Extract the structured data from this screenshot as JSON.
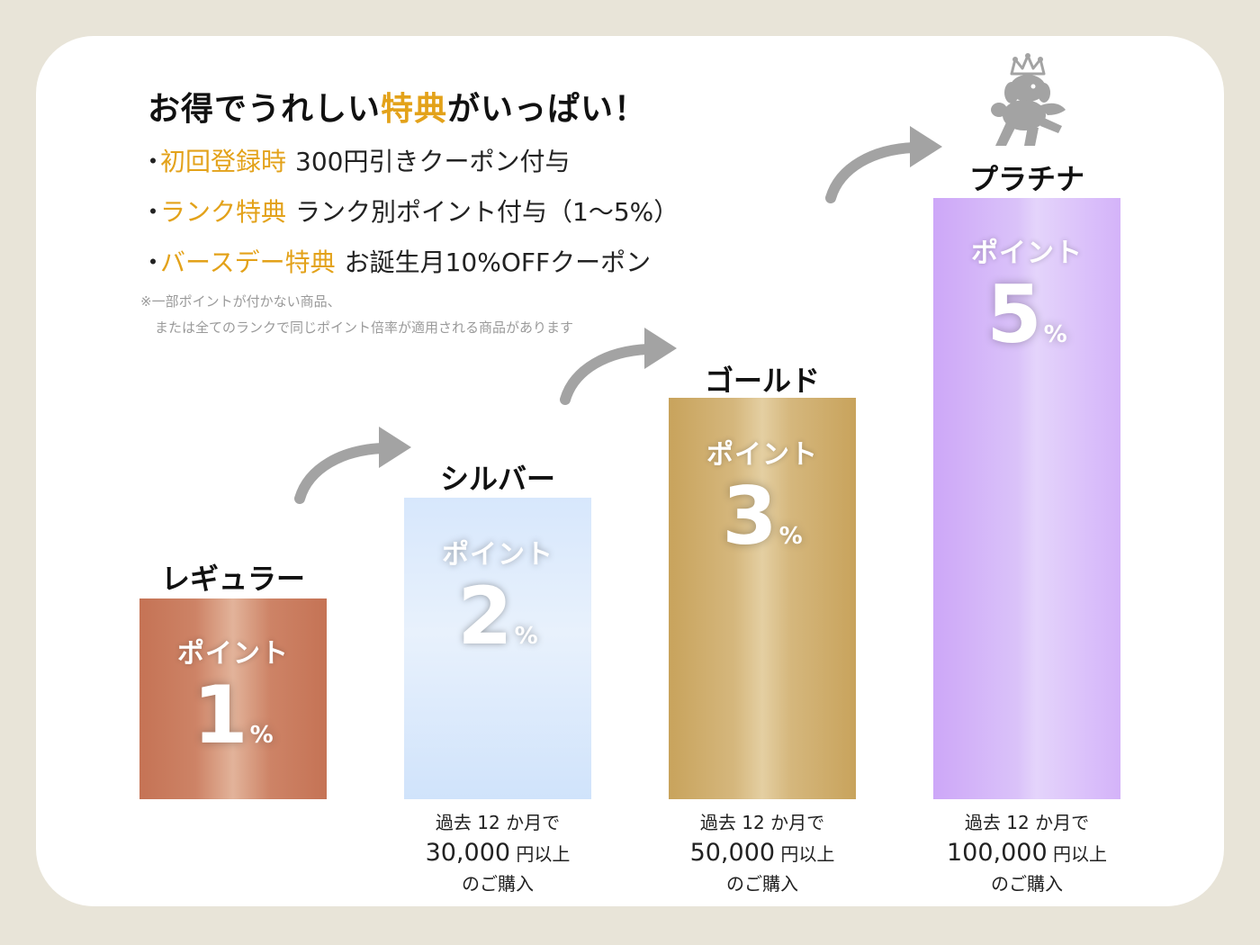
{
  "header": {
    "headline_pre": "お得でうれしい",
    "headline_highlight": "特典",
    "headline_post": "がいっぱい！"
  },
  "benefits": [
    {
      "bullet": "・",
      "accent": "初回登録時",
      "text": "300円引きクーポン付与"
    },
    {
      "bullet": "・",
      "accent": "ランク特典",
      "text": "ランク別ポイント付与（1～5%）"
    },
    {
      "bullet": "・",
      "accent": "バースデー特典",
      "text": "お誕生月10%OFFクーポン"
    }
  ],
  "note": {
    "line1": "※一部ポイントが付かない商品、",
    "line2": "または全てのランクで同じポイント倍率が適用される商品があります"
  },
  "ranks": [
    {
      "name": "レギュラー",
      "point_label": "ポイント",
      "rate": "1",
      "unit": "%"
    },
    {
      "name": "シルバー",
      "point_label": "ポイント",
      "rate": "2",
      "unit": "%",
      "cond_line1": "過去 12 か月で",
      "cond_amount": "30,000",
      "cond_yen": " 円以上",
      "cond_line3": "のご購入"
    },
    {
      "name": "ゴールド",
      "point_label": "ポイント",
      "rate": "3",
      "unit": "%",
      "cond_line1": "過去 12 か月で",
      "cond_amount": "50,000",
      "cond_yen": " 円以上",
      "cond_line3": "のご購入"
    },
    {
      "name": "プラチナ",
      "point_label": "ポイント",
      "rate": "5",
      "unit": "%",
      "cond_line1": "過去 12 か月で",
      "cond_amount": "100,000",
      "cond_yen": " 円以上",
      "cond_line3": "のご購入"
    }
  ],
  "colors": {
    "background": "#e8e4d8",
    "accent": "#e3a21a",
    "regular": "#c57355",
    "silver": "#d7e7fc",
    "gold": "#c8a35c",
    "platinum": "#cda7f8",
    "arrow": "#a3a3a3"
  },
  "icons": [
    "curved-arrow-icon",
    "crowned-dog-mascot-icon"
  ]
}
